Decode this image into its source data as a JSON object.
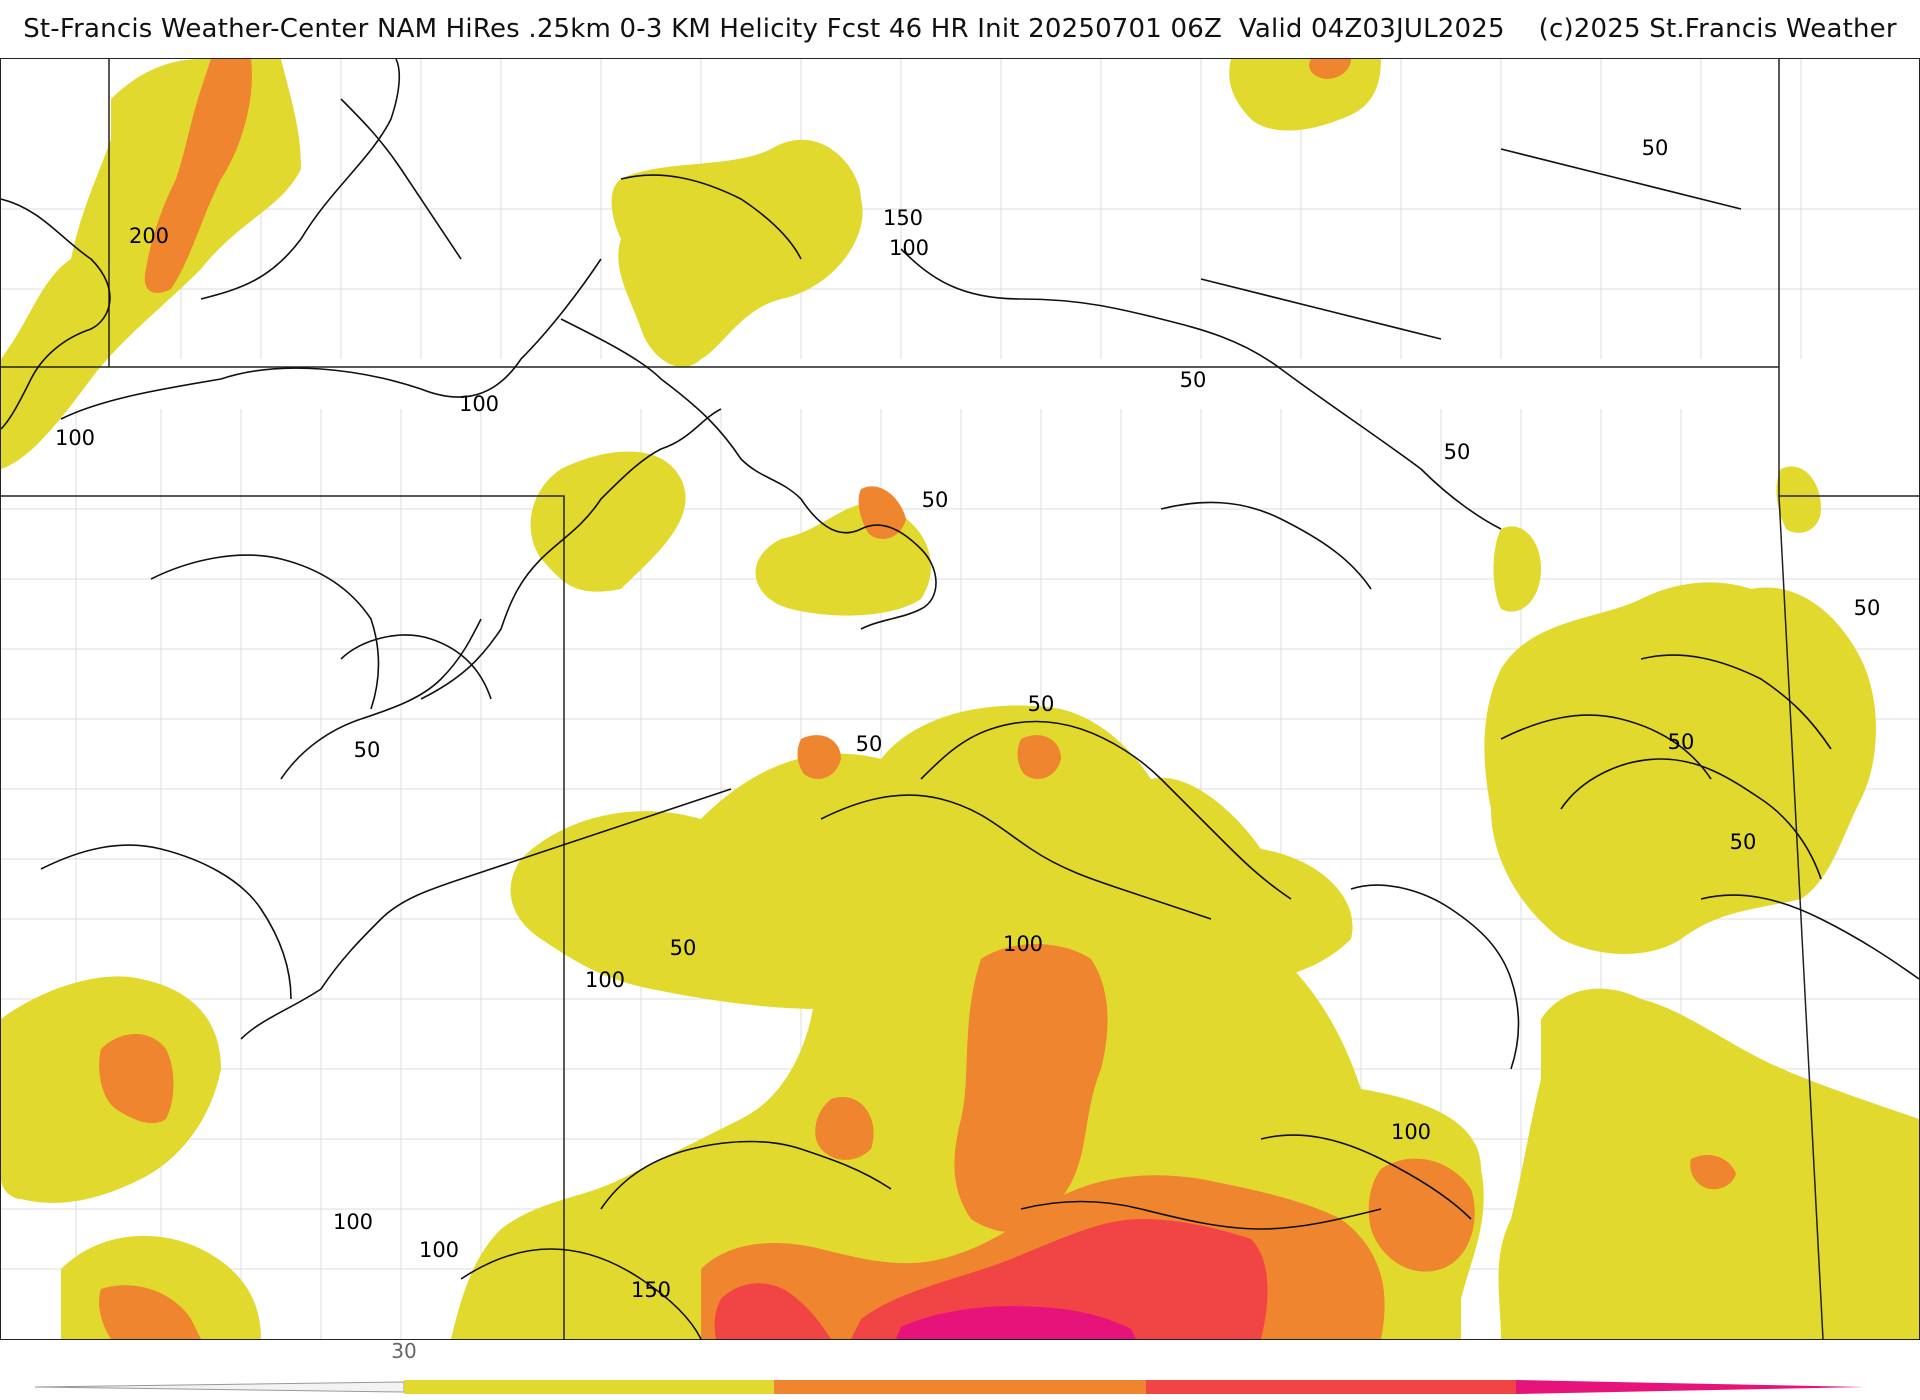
{
  "title": {
    "text": "St-Francis Weather-Center NAM HiRes .25km 0-3 KM Helicity Fcst 46 HR Init 20250701 06Z  Valid 04Z03JUL2025    (c)2025 St.Francis Weather"
  },
  "map": {
    "contour_labels": [
      "200",
      "150",
      "100",
      "100",
      "100",
      "50",
      "50",
      "50",
      "50",
      "50",
      "50",
      "50",
      "50",
      "50",
      "100",
      "50",
      "100",
      "100",
      "50",
      "100",
      "150",
      "100"
    ],
    "fill_colors": {
      "level1": "#e2d92e",
      "level2": "#ef852e",
      "level3": "#f14545",
      "level4": "#e6137b"
    }
  },
  "colorbar": {
    "tick_label": "30",
    "colors": [
      "#e2d92e",
      "#ef852e",
      "#f14545",
      "#e6137b"
    ]
  }
}
